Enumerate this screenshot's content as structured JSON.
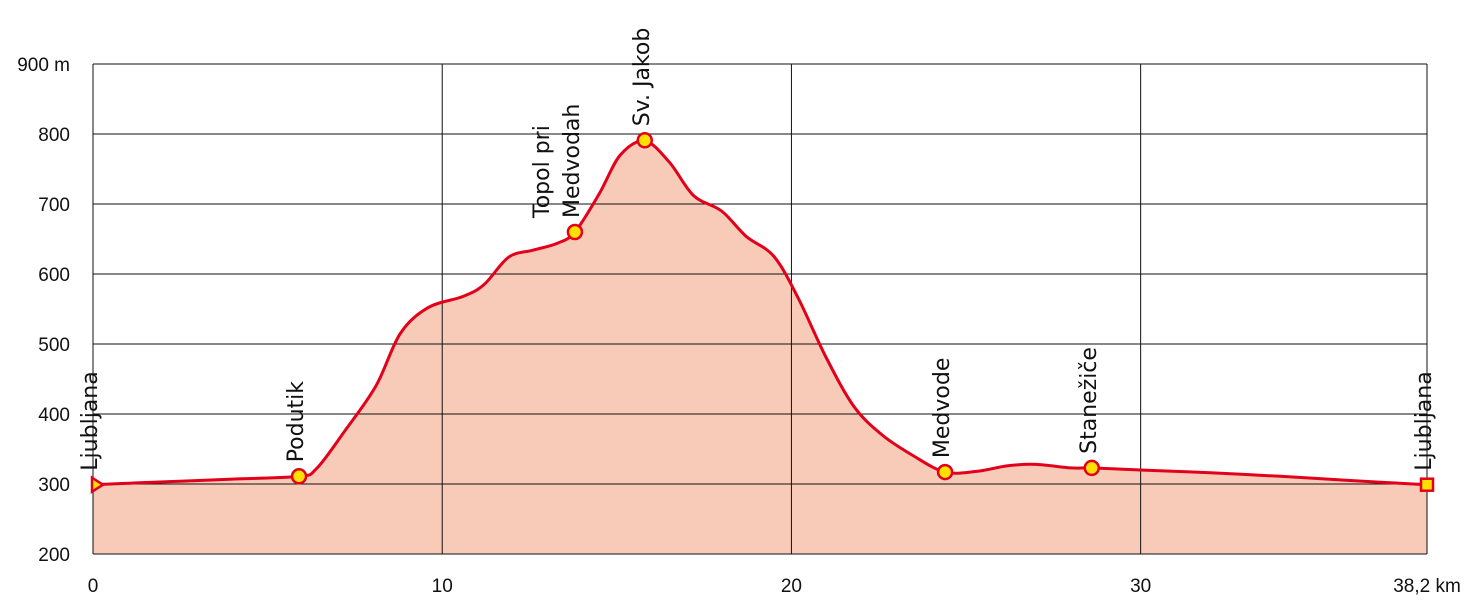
{
  "chart_data": {
    "type": "area",
    "title": "",
    "xlabel": "",
    "ylabel": "",
    "xlim": [
      0,
      38.2
    ],
    "ylim": [
      200,
      900
    ],
    "grid": true,
    "x_ticks": [
      0,
      10,
      20,
      30,
      38.2
    ],
    "x_tick_labels": [
      "0",
      "10",
      "20",
      "30",
      "38,2 km"
    ],
    "y_ticks": [
      200,
      300,
      400,
      500,
      600,
      700,
      800,
      900
    ],
    "y_tick_labels": [
      "200",
      "300",
      "400",
      "500",
      "600",
      "700",
      "800",
      "900 m"
    ],
    "series": [
      {
        "x": [
          0,
          2,
          4,
          5.9,
          6.4,
          7.2,
          8.1,
          8.8,
          9.6,
          10.6,
          11.2,
          11.9,
          12.6,
          13.3,
          13.8,
          14.5,
          15.1,
          15.8,
          16.5,
          17.2,
          18.0,
          18.7,
          19.5,
          20.2,
          21.0,
          21.8,
          22.6,
          23.5,
          24.4,
          25.3,
          26.2,
          27.0,
          28.0,
          28.6,
          30.0,
          32.0,
          34.0,
          36.0,
          38.2
        ],
        "y": [
          299,
          303,
          307,
          311,
          322,
          375,
          440,
          515,
          552,
          568,
          585,
          624,
          634,
          644,
          660,
          715,
          770,
          790,
          760,
          712,
          690,
          654,
          625,
          565,
          480,
          410,
          370,
          340,
          317,
          318,
          326,
          328,
          323,
          323,
          320,
          316,
          311,
          305,
          299
        ]
      }
    ],
    "colors": {
      "line": "#e2001a",
      "fill": "#f8cbb9",
      "marker": "#ffe100",
      "grid": "#111111"
    },
    "waypoints": [
      {
        "name": "Ljubljana",
        "x": 0,
        "y": 299,
        "marker": "triangle"
      },
      {
        "name": "Podutik",
        "x": 5.9,
        "y": 311,
        "marker": "circle"
      },
      {
        "name": "Topol pri Medvodah",
        "lines": [
          "Topol pri",
          "Medvodah"
        ],
        "x": 13.8,
        "y": 660,
        "marker": "circle"
      },
      {
        "name": "Sv. Jakob",
        "x": 15.8,
        "y": 791,
        "marker": "circle"
      },
      {
        "name": "Medvode",
        "x": 24.4,
        "y": 317,
        "marker": "circle"
      },
      {
        "name": "Stanežiče",
        "x": 28.6,
        "y": 323,
        "marker": "circle"
      },
      {
        "name": "Ljubljana",
        "x": 38.2,
        "y": 299,
        "marker": "square"
      }
    ]
  }
}
